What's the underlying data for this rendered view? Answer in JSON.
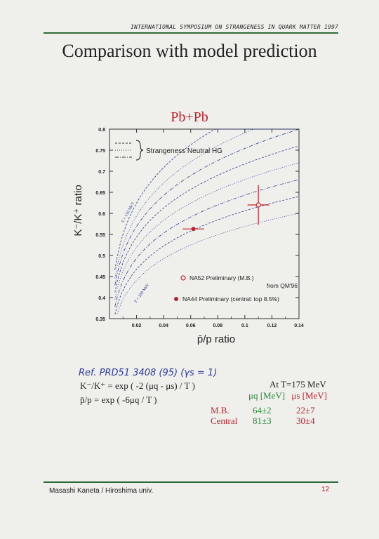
{
  "header": {
    "conference": "INTERNATIONAL SYMPOSIUM ON STRANGENESS IN QUARK MATTER 1997"
  },
  "slide": {
    "title": "Comparison with model prediction"
  },
  "chart_data": {
    "type": "scatter",
    "title": "Pb+Pb",
    "xlabel": "p̄/p ratio",
    "ylabel": "K⁻/K⁺ ratio",
    "xlim": [
      0,
      0.14
    ],
    "ylim": [
      0.35,
      0.8
    ],
    "xticks": [
      "0.02",
      "0.04",
      "0.06",
      "0.08",
      "0.1",
      "0.12",
      "0.14"
    ],
    "yticks": [
      "0.35",
      "0.4",
      "0.45",
      "0.5",
      "0.55",
      "0.6",
      "0.65",
      "0.7",
      "0.75",
      "0.8"
    ],
    "legend_model": "Strangeness Neutral HG",
    "curve_annotations": [
      "T = 150 MeV",
      "T = 200 MeV"
    ],
    "points": [
      {
        "name": "NA52 Preliminary (M.B.)",
        "sub": "from QM'96",
        "marker": "open-circle",
        "x": 0.11,
        "y": 0.62,
        "xerr": 0.008,
        "yerr": 0.047,
        "color": "#c0202a"
      },
      {
        "name": "NA44 Preliminary (central: top 8.5%)",
        "marker": "filled-circle",
        "x": 0.062,
        "y": 0.563,
        "xerr": 0.008,
        "yerr": 0.004,
        "color": "#c0202a"
      }
    ],
    "model_curve_color": "#2a3a8a"
  },
  "notes": {
    "reference": "Ref. PRD51 3408 (95)   (γs = 1)",
    "formula1": "K⁻/K⁺ = exp ( -2 (μq - μs) / T )",
    "formula2": "p̄/p = exp ( -6μq / T )",
    "temperature": "At T=175 MeV",
    "mu_q_header": "μq [MeV]",
    "mu_s_header": "μs [MeV]",
    "rows": [
      {
        "label": "M.B.",
        "mu_q": "64±2",
        "mu_s": "22±7"
      },
      {
        "label": "Central",
        "mu_q": "81±3",
        "mu_s": "30±4"
      }
    ]
  },
  "footer": {
    "author": "Masashi Kaneta / Hiroshima univ.",
    "page": "12"
  },
  "colors": {
    "accent_red": "#c0202a",
    "rule_green": "#2f6b3a",
    "ink_blue": "#2a3a9a",
    "mu_green": "#2a8a3a"
  }
}
